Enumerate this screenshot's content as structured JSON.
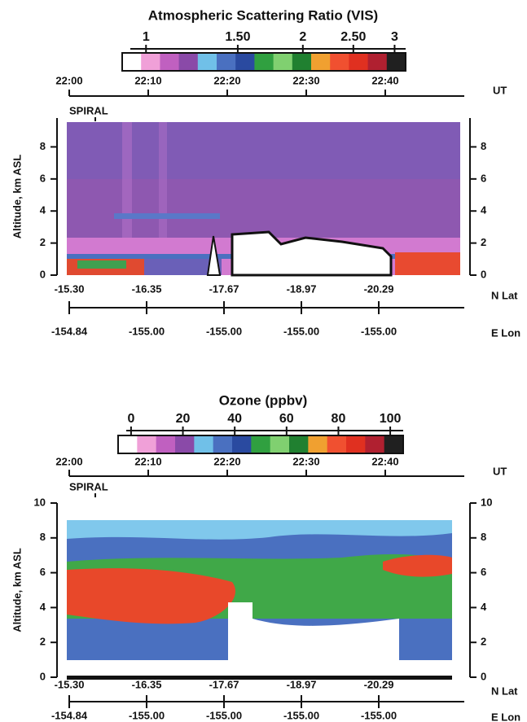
{
  "chart_data": [
    {
      "type": "heatmap",
      "title": "Atmospheric Scattering Ratio (VIS)",
      "colorbar_log": true,
      "clim": [
        0.9,
        3.15
      ],
      "colorbar_ticks": [
        1,
        {
          "value": 1.5,
          "label": "1.50"
        },
        2,
        {
          "value": 2.5,
          "label": "2.50"
        },
        3
      ],
      "colorbar_colors": [
        "#ffffff",
        "#f0a0d8",
        "#c060c0",
        "#8a4aa8",
        "#70c0e8",
        "#4a70c0",
        "#2a4aa0",
        "#30a040",
        "#80d070",
        "#208030",
        "#f0a030",
        "#f05030",
        "#e03020",
        "#b02030",
        "#202020"
      ],
      "time_ticks": [
        "22:00",
        "22:10",
        "22:20",
        "22:30",
        "22:40"
      ],
      "time_label": "UT",
      "annotation": "SPIRAL",
      "ylabel": "Altitude, km ASL",
      "ylim": [
        0,
        9.8
      ],
      "yticks": [
        0,
        2,
        4,
        6,
        8
      ],
      "lat_ticks": [
        "-15.30",
        "-16.35",
        "-17.67",
        "-18.97",
        "-20.29"
      ],
      "lat_label": "N Lat",
      "lon_ticks": [
        "-154.84",
        "-155.00",
        "-155.00",
        "-155.00",
        "-155.00"
      ],
      "lon_label": "E Lon"
    },
    {
      "type": "heatmap",
      "title": "Ozone (ppbv)",
      "colorbar_log": false,
      "clim": [
        -5,
        105
      ],
      "colorbar_ticks": [
        0,
        20,
        40,
        60,
        80,
        100
      ],
      "colorbar_colors": [
        "#ffffff",
        "#f0a0d8",
        "#c060c0",
        "#8a4aa8",
        "#70c0e8",
        "#4a70c0",
        "#2a4aa0",
        "#30a040",
        "#80d070",
        "#208030",
        "#f0a030",
        "#f05030",
        "#e03020",
        "#b02030",
        "#202020"
      ],
      "time_ticks": [
        "22:00",
        "22:10",
        "22:20",
        "22:30",
        "22:40"
      ],
      "time_label": "UT",
      "annotation": "SPIRAL",
      "ylabel": "Altitude, km ASL",
      "ylim": [
        0,
        10
      ],
      "yticks": [
        0,
        2,
        4,
        6,
        8,
        10
      ],
      "lat_ticks": [
        "-15.30",
        "-16.35",
        "-17.67",
        "-18.97",
        "-20.29"
      ],
      "lat_label": "N Lat",
      "lon_ticks": [
        "-154.84",
        "-155.00",
        "-155.00",
        "-155.00",
        "-155.00"
      ],
      "lon_label": "E Lon"
    }
  ]
}
